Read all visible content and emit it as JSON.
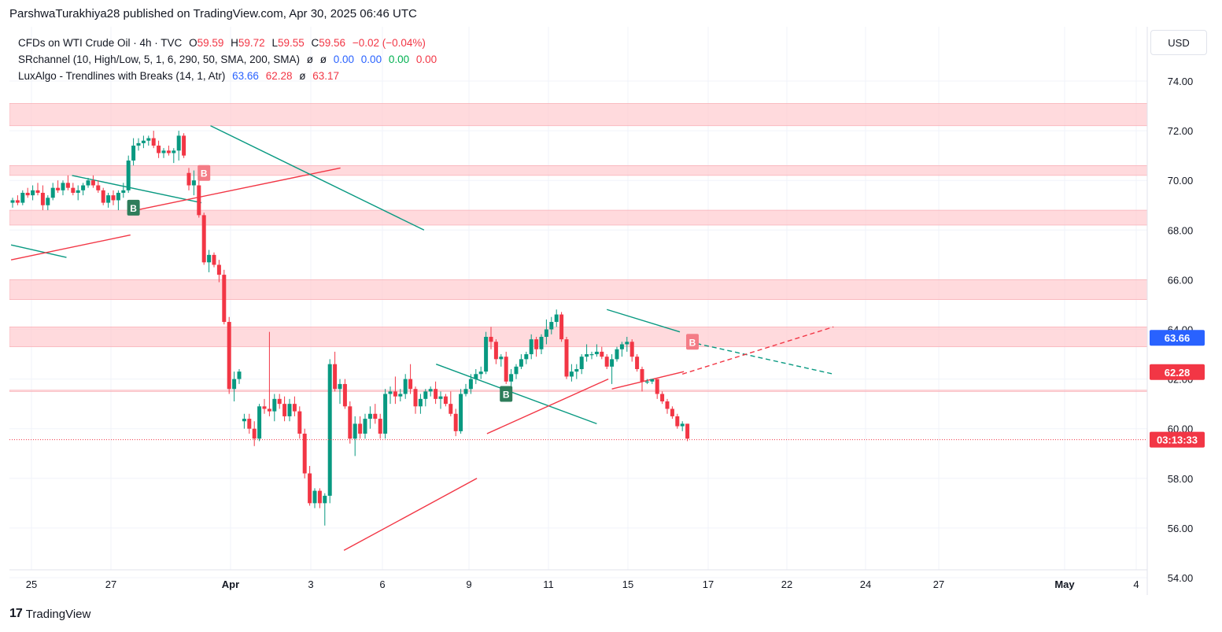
{
  "header": {
    "text": "ParshwaTurakhiya28 published on TradingView.com, Apr 30, 2025 06:46 UTC"
  },
  "legend": {
    "symbol_line": {
      "name": "CFDs on WTI Crude Oil · 4h · TVC",
      "o_label": "O",
      "o": "59.59",
      "h_label": "H",
      "h": "59.72",
      "l_label": "L",
      "l": "59.55",
      "c_label": "C",
      "c": "59.56",
      "change": "−0.02 (−0.04%)"
    },
    "srchannel": {
      "name": "SRchannel (10, High/Low, 5, 1, 6, 290, 50, SMA, 200, SMA)",
      "v1": "ø",
      "v2": "ø",
      "v3": "0.00",
      "v4": "0.00",
      "v5": "0.00",
      "v6": "0.00"
    },
    "luxalgo": {
      "name": "LuxAlgo - Trendlines with Breaks (14, 1, Atr)",
      "v1": "63.66",
      "v2": "62.28",
      "v3": "ø",
      "v4": "63.17"
    }
  },
  "currency_button": "USD",
  "price_labels": {
    "upper": "63.66",
    "lower": "62.28",
    "countdown": "03:13:33"
  },
  "footer": {
    "logo": "17",
    "brand": "TradingView"
  },
  "colors": {
    "up": "#089981",
    "down": "#f23645",
    "zone": "#ffcdd2",
    "trend_up": "#f23645",
    "trend_down": "#089981",
    "blue_label": "#2962ff"
  },
  "chart_data": {
    "type": "candlestick",
    "y_ticks": [
      "74.00",
      "72.00",
      "70.00",
      "68.00",
      "66.00",
      "64.00",
      "62.00",
      "60.00",
      "58.00",
      "56.00",
      "54.00"
    ],
    "x_ticks": [
      "25",
      "27",
      "Apr",
      "3",
      "6",
      "9",
      "11",
      "15",
      "17",
      "22",
      "24",
      "27",
      "May",
      "4"
    ],
    "ylim": [
      53.5,
      75.5
    ],
    "last_price": 59.56,
    "candles": [
      [
        69.1,
        69.3,
        68.9,
        69.2
      ],
      [
        69.2,
        69.4,
        69.0,
        69.1
      ],
      [
        69.1,
        69.6,
        69.0,
        69.5
      ],
      [
        69.5,
        69.7,
        69.3,
        69.4
      ],
      [
        69.4,
        69.8,
        69.2,
        69.6
      ],
      [
        69.6,
        69.9,
        69.4,
        69.5
      ],
      [
        69.5,
        69.8,
        68.8,
        69.0
      ],
      [
        69.0,
        69.4,
        68.8,
        69.3
      ],
      [
        69.3,
        69.9,
        69.2,
        69.7
      ],
      [
        69.7,
        70.0,
        69.5,
        69.6
      ],
      [
        69.6,
        70.0,
        69.4,
        69.9
      ],
      [
        69.9,
        70.2,
        69.6,
        69.7
      ],
      [
        69.7,
        69.9,
        69.4,
        69.5
      ],
      [
        69.5,
        69.8,
        69.2,
        69.6
      ],
      [
        69.6,
        69.9,
        69.4,
        69.8
      ],
      [
        69.8,
        70.1,
        69.7,
        70.0
      ],
      [
        70.0,
        70.2,
        69.7,
        69.8
      ],
      [
        69.8,
        70.0,
        69.5,
        69.6
      ],
      [
        69.6,
        69.7,
        69.0,
        69.1
      ],
      [
        69.1,
        69.5,
        68.9,
        69.4
      ],
      [
        69.4,
        69.6,
        69.0,
        69.2
      ],
      [
        69.2,
        69.6,
        68.8,
        69.5
      ],
      [
        69.5,
        69.9,
        69.3,
        69.6
      ],
      [
        69.6,
        71.0,
        69.5,
        70.8
      ],
      [
        70.8,
        71.7,
        70.6,
        71.4
      ],
      [
        71.4,
        71.7,
        71.2,
        71.5
      ],
      [
        71.5,
        71.8,
        71.3,
        71.6
      ],
      [
        71.6,
        71.8,
        71.4,
        71.7
      ],
      [
        71.7,
        72.0,
        71.3,
        71.4
      ],
      [
        71.4,
        71.6,
        70.9,
        71.1
      ],
      [
        71.1,
        71.3,
        70.9,
        71.2
      ],
      [
        71.2,
        71.4,
        71.0,
        71.1
      ],
      [
        71.1,
        71.3,
        70.7,
        71.2
      ],
      [
        71.2,
        72.0,
        70.8,
        71.8
      ],
      [
        71.8,
        71.9,
        70.9,
        71.0
      ],
      [
        70.3,
        70.5,
        69.6,
        69.8
      ],
      [
        69.8,
        70.4,
        69.4,
        70.0
      ],
      [
        69.8,
        70.0,
        68.5,
        68.6
      ],
      [
        68.6,
        68.7,
        66.6,
        66.7
      ],
      [
        66.7,
        67.2,
        66.3,
        67.0
      ],
      [
        67.0,
        67.1,
        66.5,
        66.6
      ],
      [
        66.6,
        66.8,
        65.9,
        66.2
      ],
      [
        66.2,
        66.4,
        64.2,
        64.3
      ],
      [
        64.3,
        64.5,
        61.4,
        61.6
      ],
      [
        61.6,
        62.3,
        61.1,
        62.0
      ],
      [
        62.0,
        62.4,
        61.8,
        62.3
      ],
      [
        60.3,
        60.6,
        60.0,
        60.4
      ],
      [
        60.4,
        60.6,
        59.8,
        60.0
      ],
      [
        60.0,
        60.3,
        59.3,
        59.6
      ],
      [
        59.6,
        61.0,
        59.5,
        60.9
      ],
      [
        60.9,
        61.2,
        60.6,
        60.8
      ],
      [
        60.8,
        63.9,
        60.5,
        60.7
      ],
      [
        60.7,
        61.4,
        60.3,
        61.2
      ],
      [
        61.2,
        61.4,
        60.8,
        61.0
      ],
      [
        61.0,
        61.3,
        60.3,
        60.5
      ],
      [
        60.5,
        61.2,
        60.3,
        61.0
      ],
      [
        61.0,
        61.3,
        60.5,
        60.7
      ],
      [
        60.7,
        60.9,
        59.6,
        59.8
      ],
      [
        59.8,
        60.0,
        58.0,
        58.2
      ],
      [
        58.2,
        58.5,
        56.9,
        57.0
      ],
      [
        57.0,
        57.6,
        56.8,
        57.5
      ],
      [
        57.5,
        57.6,
        56.8,
        57.0
      ],
      [
        57.0,
        57.4,
        56.1,
        57.3
      ],
      [
        57.3,
        62.8,
        57.0,
        62.6
      ],
      [
        62.6,
        63.1,
        61.5,
        61.6
      ],
      [
        61.6,
        62.0,
        61.0,
        61.8
      ],
      [
        61.8,
        62.0,
        60.8,
        60.9
      ],
      [
        60.9,
        61.1,
        59.4,
        59.6
      ],
      [
        59.6,
        60.5,
        58.9,
        60.2
      ],
      [
        60.2,
        60.5,
        59.6,
        59.8
      ],
      [
        59.8,
        60.6,
        59.6,
        60.4
      ],
      [
        60.4,
        60.9,
        60.0,
        60.6
      ],
      [
        60.6,
        61.0,
        60.2,
        60.4
      ],
      [
        60.4,
        60.6,
        59.6,
        59.8
      ],
      [
        59.8,
        61.6,
        59.6,
        61.4
      ],
      [
        61.4,
        61.7,
        61.0,
        61.5
      ],
      [
        61.5,
        62.1,
        61.0,
        61.3
      ],
      [
        61.3,
        61.6,
        61.1,
        61.4
      ],
      [
        61.4,
        62.2,
        61.2,
        62.0
      ],
      [
        62.0,
        62.6,
        61.4,
        61.6
      ],
      [
        61.6,
        61.7,
        60.6,
        60.9
      ],
      [
        60.9,
        61.4,
        60.6,
        61.2
      ],
      [
        61.2,
        61.6,
        60.9,
        61.5
      ],
      [
        61.5,
        61.7,
        61.3,
        61.6
      ],
      [
        61.6,
        61.9,
        61.0,
        61.2
      ],
      [
        61.2,
        61.5,
        60.8,
        61.3
      ],
      [
        61.3,
        61.4,
        60.9,
        61.0
      ],
      [
        61.0,
        61.5,
        60.5,
        60.6
      ],
      [
        60.6,
        60.8,
        59.7,
        59.9
      ],
      [
        59.9,
        61.6,
        59.8,
        61.4
      ],
      [
        61.4,
        61.8,
        61.3,
        61.6
      ],
      [
        61.6,
        62.2,
        61.4,
        62.0
      ],
      [
        62.0,
        62.4,
        61.8,
        62.2
      ],
      [
        62.2,
        62.5,
        62.0,
        62.3
      ],
      [
        62.3,
        63.9,
        62.2,
        63.7
      ],
      [
        63.7,
        64.1,
        63.2,
        63.5
      ],
      [
        63.5,
        63.6,
        62.6,
        62.8
      ],
      [
        62.8,
        63.0,
        62.5,
        62.9
      ],
      [
        62.9,
        63.1,
        61.8,
        61.9
      ],
      [
        61.9,
        62.4,
        61.7,
        62.2
      ],
      [
        62.2,
        62.6,
        62.0,
        62.5
      ],
      [
        62.5,
        63.0,
        62.4,
        62.8
      ],
      [
        62.8,
        63.1,
        62.6,
        63.0
      ],
      [
        63.0,
        63.8,
        62.8,
        63.6
      ],
      [
        63.6,
        63.7,
        62.9,
        63.2
      ],
      [
        63.2,
        63.8,
        63.0,
        63.7
      ],
      [
        63.7,
        64.4,
        63.4,
        64.0
      ],
      [
        64.0,
        64.5,
        63.8,
        64.3
      ],
      [
        64.3,
        64.8,
        64.1,
        64.6
      ],
      [
        64.6,
        64.7,
        63.5,
        63.6
      ],
      [
        63.6,
        63.7,
        62.0,
        62.1
      ],
      [
        62.1,
        62.6,
        61.9,
        62.3
      ],
      [
        62.3,
        62.6,
        62.0,
        62.4
      ],
      [
        62.4,
        63.0,
        62.2,
        62.9
      ],
      [
        62.9,
        63.4,
        62.7,
        63.0
      ],
      [
        63.0,
        63.1,
        62.8,
        63.0
      ],
      [
        63.0,
        63.4,
        62.9,
        63.1
      ],
      [
        63.1,
        63.3,
        62.8,
        62.9
      ],
      [
        62.9,
        63.0,
        62.4,
        62.5
      ],
      [
        62.5,
        63.0,
        61.8,
        62.8
      ],
      [
        62.8,
        63.3,
        62.7,
        63.2
      ],
      [
        63.2,
        63.5,
        62.9,
        63.4
      ],
      [
        63.4,
        63.7,
        63.1,
        63.5
      ],
      [
        63.5,
        63.6,
        62.7,
        62.9
      ],
      [
        62.9,
        63.0,
        62.3,
        62.4
      ],
      [
        62.4,
        62.5,
        61.5,
        61.9
      ],
      [
        61.9,
        62.0,
        61.8,
        61.9
      ],
      [
        61.9,
        62.0,
        61.8,
        62.0
      ],
      [
        62.0,
        62.0,
        61.2,
        61.4
      ],
      [
        61.4,
        61.5,
        61.0,
        61.1
      ],
      [
        61.1,
        61.2,
        60.6,
        60.8
      ],
      [
        60.8,
        60.9,
        60.4,
        60.5
      ],
      [
        60.5,
        60.6,
        60.0,
        60.1
      ],
      [
        60.1,
        60.3,
        59.9,
        60.2
      ],
      [
        60.2,
        60.2,
        59.5,
        59.6
      ]
    ],
    "sr_zones": [
      [
        72.2,
        73.1
      ],
      [
        70.2,
        70.6
      ],
      [
        68.2,
        68.8
      ],
      [
        65.2,
        66.0
      ],
      [
        63.3,
        64.1
      ],
      [
        61.5,
        61.55
      ]
    ],
    "trend_lines": [
      {
        "kind": "resistance",
        "from": [
          -0.3,
          67.4
        ],
        "to": [
          10.7,
          66.9
        ]
      },
      {
        "kind": "support",
        "from": [
          -0.3,
          66.8
        ],
        "to": [
          23.4,
          67.8
        ]
      },
      {
        "kind": "resistance",
        "from": [
          11.8,
          70.2
        ],
        "to": [
          37.5,
          69.1
        ]
      },
      {
        "kind": "support",
        "from": [
          24.5,
          68.8
        ],
        "to": [
          65.1,
          70.5
        ]
      },
      {
        "kind": "resistance",
        "from": [
          39.3,
          72.2
        ],
        "to": [
          81.7,
          68.0
        ]
      },
      {
        "kind": "support",
        "from": [
          65.8,
          55.1
        ],
        "to": [
          92.2,
          58.0
        ]
      },
      {
        "kind": "resistance",
        "from": [
          84.1,
          62.6
        ],
        "to": [
          116.0,
          60.2
        ]
      },
      {
        "kind": "support",
        "from": [
          94.2,
          59.8
        ],
        "to": [
          118.3,
          62.0
        ]
      },
      {
        "kind": "resistance",
        "from": [
          118.0,
          64.8
        ],
        "to": [
          132.5,
          63.9
        ]
      },
      {
        "kind": "support",
        "from": [
          119.0,
          61.6
        ],
        "to": [
          133.3,
          62.3
        ]
      },
      {
        "kind": "resistance",
        "from": [
          134.3,
          63.5
        ],
        "to": [
          163.0,
          62.2
        ],
        "dashed": true
      },
      {
        "kind": "support",
        "from": [
          133.0,
          62.2
        ],
        "to": [
          163.0,
          64.1
        ],
        "dashed": true
      }
    ],
    "signals": [
      {
        "label": "B",
        "kind": "bull",
        "index": 24,
        "price": 68.9
      },
      {
        "label": "B",
        "kind": "bear",
        "index": 38,
        "price": 70.3
      },
      {
        "label": "B",
        "kind": "bull",
        "index": 98,
        "price": 61.4
      },
      {
        "label": "B",
        "kind": "bear",
        "index": 135,
        "price": 63.5
      }
    ]
  }
}
